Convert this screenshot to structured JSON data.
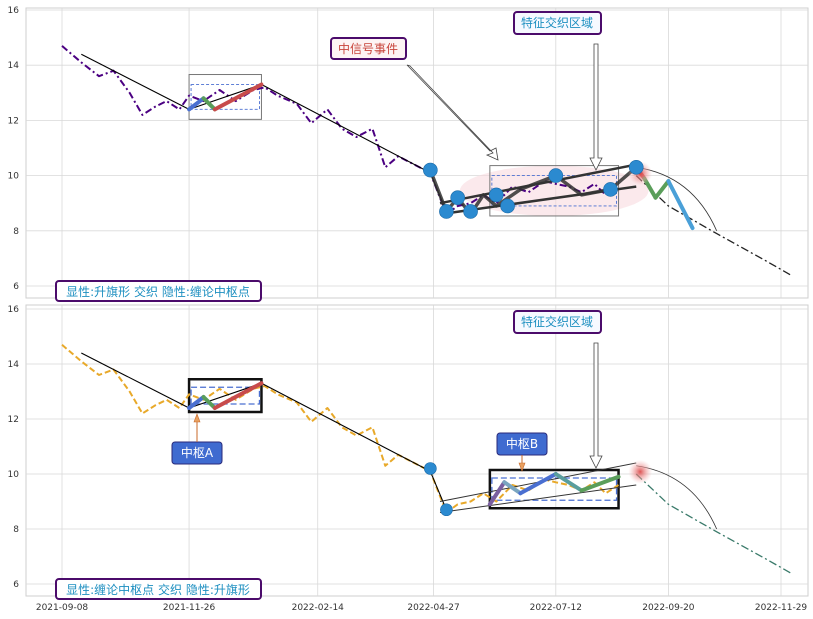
{
  "chart_data": [
    {
      "type": "line",
      "panel": "top",
      "ylim": [
        5.8,
        16.2
      ],
      "yticks": [
        6,
        8,
        10,
        12,
        14,
        16
      ],
      "grid": true,
      "series": [
        {
          "role": "price",
          "color": "#4b0082",
          "style": "dash-dot",
          "x": [
            "2021-09-08",
            "2021-09-20",
            "2021-10-01",
            "2021-10-10",
            "2021-10-20",
            "2021-10-28",
            "2021-11-05",
            "2021-11-12",
            "2021-11-20",
            "2021-11-26",
            "2021-12-05",
            "2021-12-15",
            "2021-12-25",
            "2022-01-05",
            "2022-01-12",
            "2022-01-20",
            "2022-02-01",
            "2022-02-10",
            "2022-02-20",
            "2022-03-01",
            "2022-03-10",
            "2022-03-20",
            "2022-03-28",
            "2022-04-05",
            "2022-04-15",
            "2022-04-25",
            "2022-05-05",
            "2022-05-12",
            "2022-05-20",
            "2022-05-28",
            "2022-06-05",
            "2022-06-15",
            "2022-06-25",
            "2022-07-05",
            "2022-07-12",
            "2022-07-20",
            "2022-07-28",
            "2022-08-05",
            "2022-08-12",
            "2022-08-20"
          ],
          "y": [
            14.7,
            14.1,
            13.6,
            13.8,
            13.0,
            12.2,
            12.5,
            12.7,
            12.4,
            12.9,
            12.7,
            13.1,
            12.7,
            13.1,
            13.2,
            12.9,
            12.6,
            11.9,
            12.4,
            11.7,
            11.4,
            11.7,
            10.3,
            10.7,
            10.4,
            10.1,
            8.6,
            8.9,
            9.0,
            9.3,
            9.0,
            9.6,
            9.4,
            9.8,
            9.7,
            9.6,
            9.4,
            9.7,
            9.3,
            9.6
          ]
        },
        {
          "role": "projection",
          "color": "#222222",
          "style": "dash-dot",
          "x": [
            "2022-08-31",
            "2022-09-20",
            "2022-10-20",
            "2022-11-20",
            "2022-12-05"
          ],
          "y": [
            10.0,
            8.9,
            7.9,
            6.9,
            6.4
          ]
        },
        {
          "role": "trend",
          "color": "#000000",
          "x": [
            "2021-09-20",
            "2021-11-26",
            "2022-01-10",
            "2022-04-25",
            "2022-05-05"
          ],
          "y": [
            14.4,
            12.4,
            13.3,
            10.1,
            8.7
          ]
        },
        {
          "role": "bi-stroke",
          "color": "#303030",
          "x": [
            "2022-04-25",
            "2022-05-05",
            "2022-05-12",
            "2022-05-20",
            "2022-05-28",
            "2022-06-05",
            "2022-06-20",
            "2022-07-12",
            "2022-07-28",
            "2022-08-15",
            "2022-08-31"
          ],
          "y": [
            10.2,
            8.7,
            9.2,
            8.6,
            9.3,
            8.9,
            9.5,
            10.0,
            9.3,
            9.5,
            10.3
          ]
        }
      ],
      "segments": [
        {
          "x": [
            "2021-11-26",
            "2021-12-05"
          ],
          "y": [
            12.4,
            12.8
          ],
          "color": "#4a6fd1"
        },
        {
          "x": [
            "2021-12-05",
            "2021-12-12"
          ],
          "y": [
            12.8,
            12.4
          ],
          "color": "#5a9e5a"
        },
        {
          "x": [
            "2021-12-12",
            "2022-01-10"
          ],
          "y": [
            12.4,
            13.3
          ],
          "color": "#c84b4b"
        },
        {
          "x": [
            "2022-08-31",
            "2022-09-05"
          ],
          "y": [
            10.3,
            9.9
          ],
          "color": "#c84b4b"
        },
        {
          "x": [
            "2022-09-05",
            "2022-09-12"
          ],
          "y": [
            9.9,
            9.2
          ],
          "color": "#5a9e5a"
        },
        {
          "x": [
            "2022-09-12",
            "2022-09-20"
          ],
          "y": [
            9.2,
            9.8
          ],
          "color": "#5a9e5a"
        },
        {
          "x": [
            "2022-09-20",
            "2022-10-05"
          ],
          "y": [
            9.8,
            8.1
          ],
          "color": "#4aa0d8"
        }
      ],
      "pivot_points": {
        "x": [
          "2022-04-25",
          "2022-05-05",
          "2022-05-12",
          "2022-05-20",
          "2022-06-05",
          "2022-06-12",
          "2022-07-12",
          "2022-08-15",
          "2022-08-31"
        ],
        "y": [
          10.2,
          8.7,
          9.2,
          8.7,
          9.3,
          8.9,
          10.0,
          9.5,
          10.3
        ]
      },
      "zones": [
        {
          "x0": "2021-11-26",
          "x1": "2022-01-10",
          "y0": 12.4,
          "y1": 13.3
        },
        {
          "x0": "2022-06-01",
          "x1": "2022-08-20",
          "y0": 8.9,
          "y1": 10.0
        }
      ],
      "annotations": [
        {
          "text": "中信号事件",
          "color": "#c8443a"
        },
        {
          "text": "特征交织区域",
          "color": "#1d8fc0"
        }
      ],
      "label": "显性:升旗形 交织 隐性:缠论中枢点"
    },
    {
      "type": "line",
      "panel": "bottom",
      "ylim": [
        5.8,
        16.2
      ],
      "yticks": [
        6,
        8,
        10,
        12,
        14,
        16
      ],
      "grid": true,
      "series": [
        {
          "role": "price",
          "color": "#e8a92a",
          "style": "dashed",
          "x": [
            "2021-09-08",
            "2021-09-20",
            "2021-10-01",
            "2021-10-10",
            "2021-10-20",
            "2021-10-28",
            "2021-11-05",
            "2021-11-12",
            "2021-11-20",
            "2021-11-26",
            "2021-12-05",
            "2021-12-15",
            "2021-12-25",
            "2022-01-05",
            "2022-01-12",
            "2022-01-20",
            "2022-02-01",
            "2022-02-10",
            "2022-02-20",
            "2022-03-01",
            "2022-03-10",
            "2022-03-20",
            "2022-03-28",
            "2022-04-05",
            "2022-04-15",
            "2022-04-25",
            "2022-05-05",
            "2022-05-12",
            "2022-05-20",
            "2022-05-28",
            "2022-06-05",
            "2022-06-15",
            "2022-06-25",
            "2022-07-05",
            "2022-07-12",
            "2022-07-20",
            "2022-07-28",
            "2022-08-05",
            "2022-08-12",
            "2022-08-20"
          ],
          "y": [
            14.7,
            14.1,
            13.6,
            13.8,
            13.0,
            12.2,
            12.5,
            12.7,
            12.4,
            12.9,
            12.7,
            13.1,
            12.7,
            13.1,
            13.2,
            12.9,
            12.6,
            11.9,
            12.4,
            11.7,
            11.4,
            11.7,
            10.3,
            10.7,
            10.4,
            10.1,
            8.6,
            8.9,
            9.0,
            9.3,
            9.0,
            9.6,
            9.4,
            9.8,
            9.7,
            9.6,
            9.4,
            9.7,
            9.3,
            9.6
          ]
        },
        {
          "role": "projection",
          "color": "#3a7a6a",
          "style": "dash-dot",
          "x": [
            "2022-08-31",
            "2022-09-20",
            "2022-10-20",
            "2022-11-20",
            "2022-12-05"
          ],
          "y": [
            10.0,
            8.9,
            7.9,
            6.9,
            6.4
          ]
        },
        {
          "role": "trend",
          "color": "#000000",
          "x": [
            "2021-09-20",
            "2021-11-26",
            "2022-01-10",
            "2022-04-25",
            "2022-05-05"
          ],
          "y": [
            14.4,
            12.4,
            13.3,
            10.1,
            8.7
          ]
        }
      ],
      "segments": [
        {
          "x": [
            "2021-11-26",
            "2021-12-05"
          ],
          "y": [
            12.4,
            12.8
          ],
          "color": "#4a6fd1"
        },
        {
          "x": [
            "2021-12-05",
            "2021-12-12"
          ],
          "y": [
            12.8,
            12.4
          ],
          "color": "#5a9e5a"
        },
        {
          "x": [
            "2021-12-12",
            "2022-01-10"
          ],
          "y": [
            12.4,
            13.3
          ],
          "color": "#c84b4b"
        },
        {
          "x": [
            "2022-06-01",
            "2022-06-10"
          ],
          "y": [
            8.9,
            9.7
          ],
          "color": "#7a5fa0"
        },
        {
          "x": [
            "2022-06-10",
            "2022-06-20"
          ],
          "y": [
            9.7,
            9.3
          ],
          "color": "#7aa5c0"
        },
        {
          "x": [
            "2022-06-20",
            "2022-07-12"
          ],
          "y": [
            9.3,
            10.0
          ],
          "color": "#4a6fd1"
        },
        {
          "x": [
            "2022-07-12",
            "2022-07-28"
          ],
          "y": [
            10.0,
            9.4
          ],
          "color": "#5a9e9e"
        },
        {
          "x": [
            "2022-07-28",
            "2022-08-20"
          ],
          "y": [
            9.4,
            9.9
          ],
          "color": "#5a9e5a"
        }
      ],
      "pivot_points": {
        "x": [
          "2022-04-25",
          "2022-05-05"
        ],
        "y": [
          10.2,
          8.7
        ]
      },
      "zones": [
        {
          "x0": "2021-11-26",
          "x1": "2022-01-10",
          "y0": 12.4,
          "y1": 13.3
        },
        {
          "x0": "2022-06-01",
          "x1": "2022-08-20",
          "y0": 8.9,
          "y1": 10.0
        }
      ],
      "annotations": [
        {
          "text": "中枢A",
          "color": "#ffffff"
        },
        {
          "text": "中枢B",
          "color": "#ffffff"
        },
        {
          "text": "特征交织区域",
          "color": "#1d8fc0"
        }
      ],
      "label": "显性:缠论中枢点 交织 隐性:升旗形"
    }
  ],
  "x_axis": {
    "tick_labels": [
      "2021-09-08",
      "2021-11-26",
      "2022-02-14",
      "2022-04-27",
      "2022-07-12",
      "2022-09-20",
      "2022-11-29"
    ]
  }
}
